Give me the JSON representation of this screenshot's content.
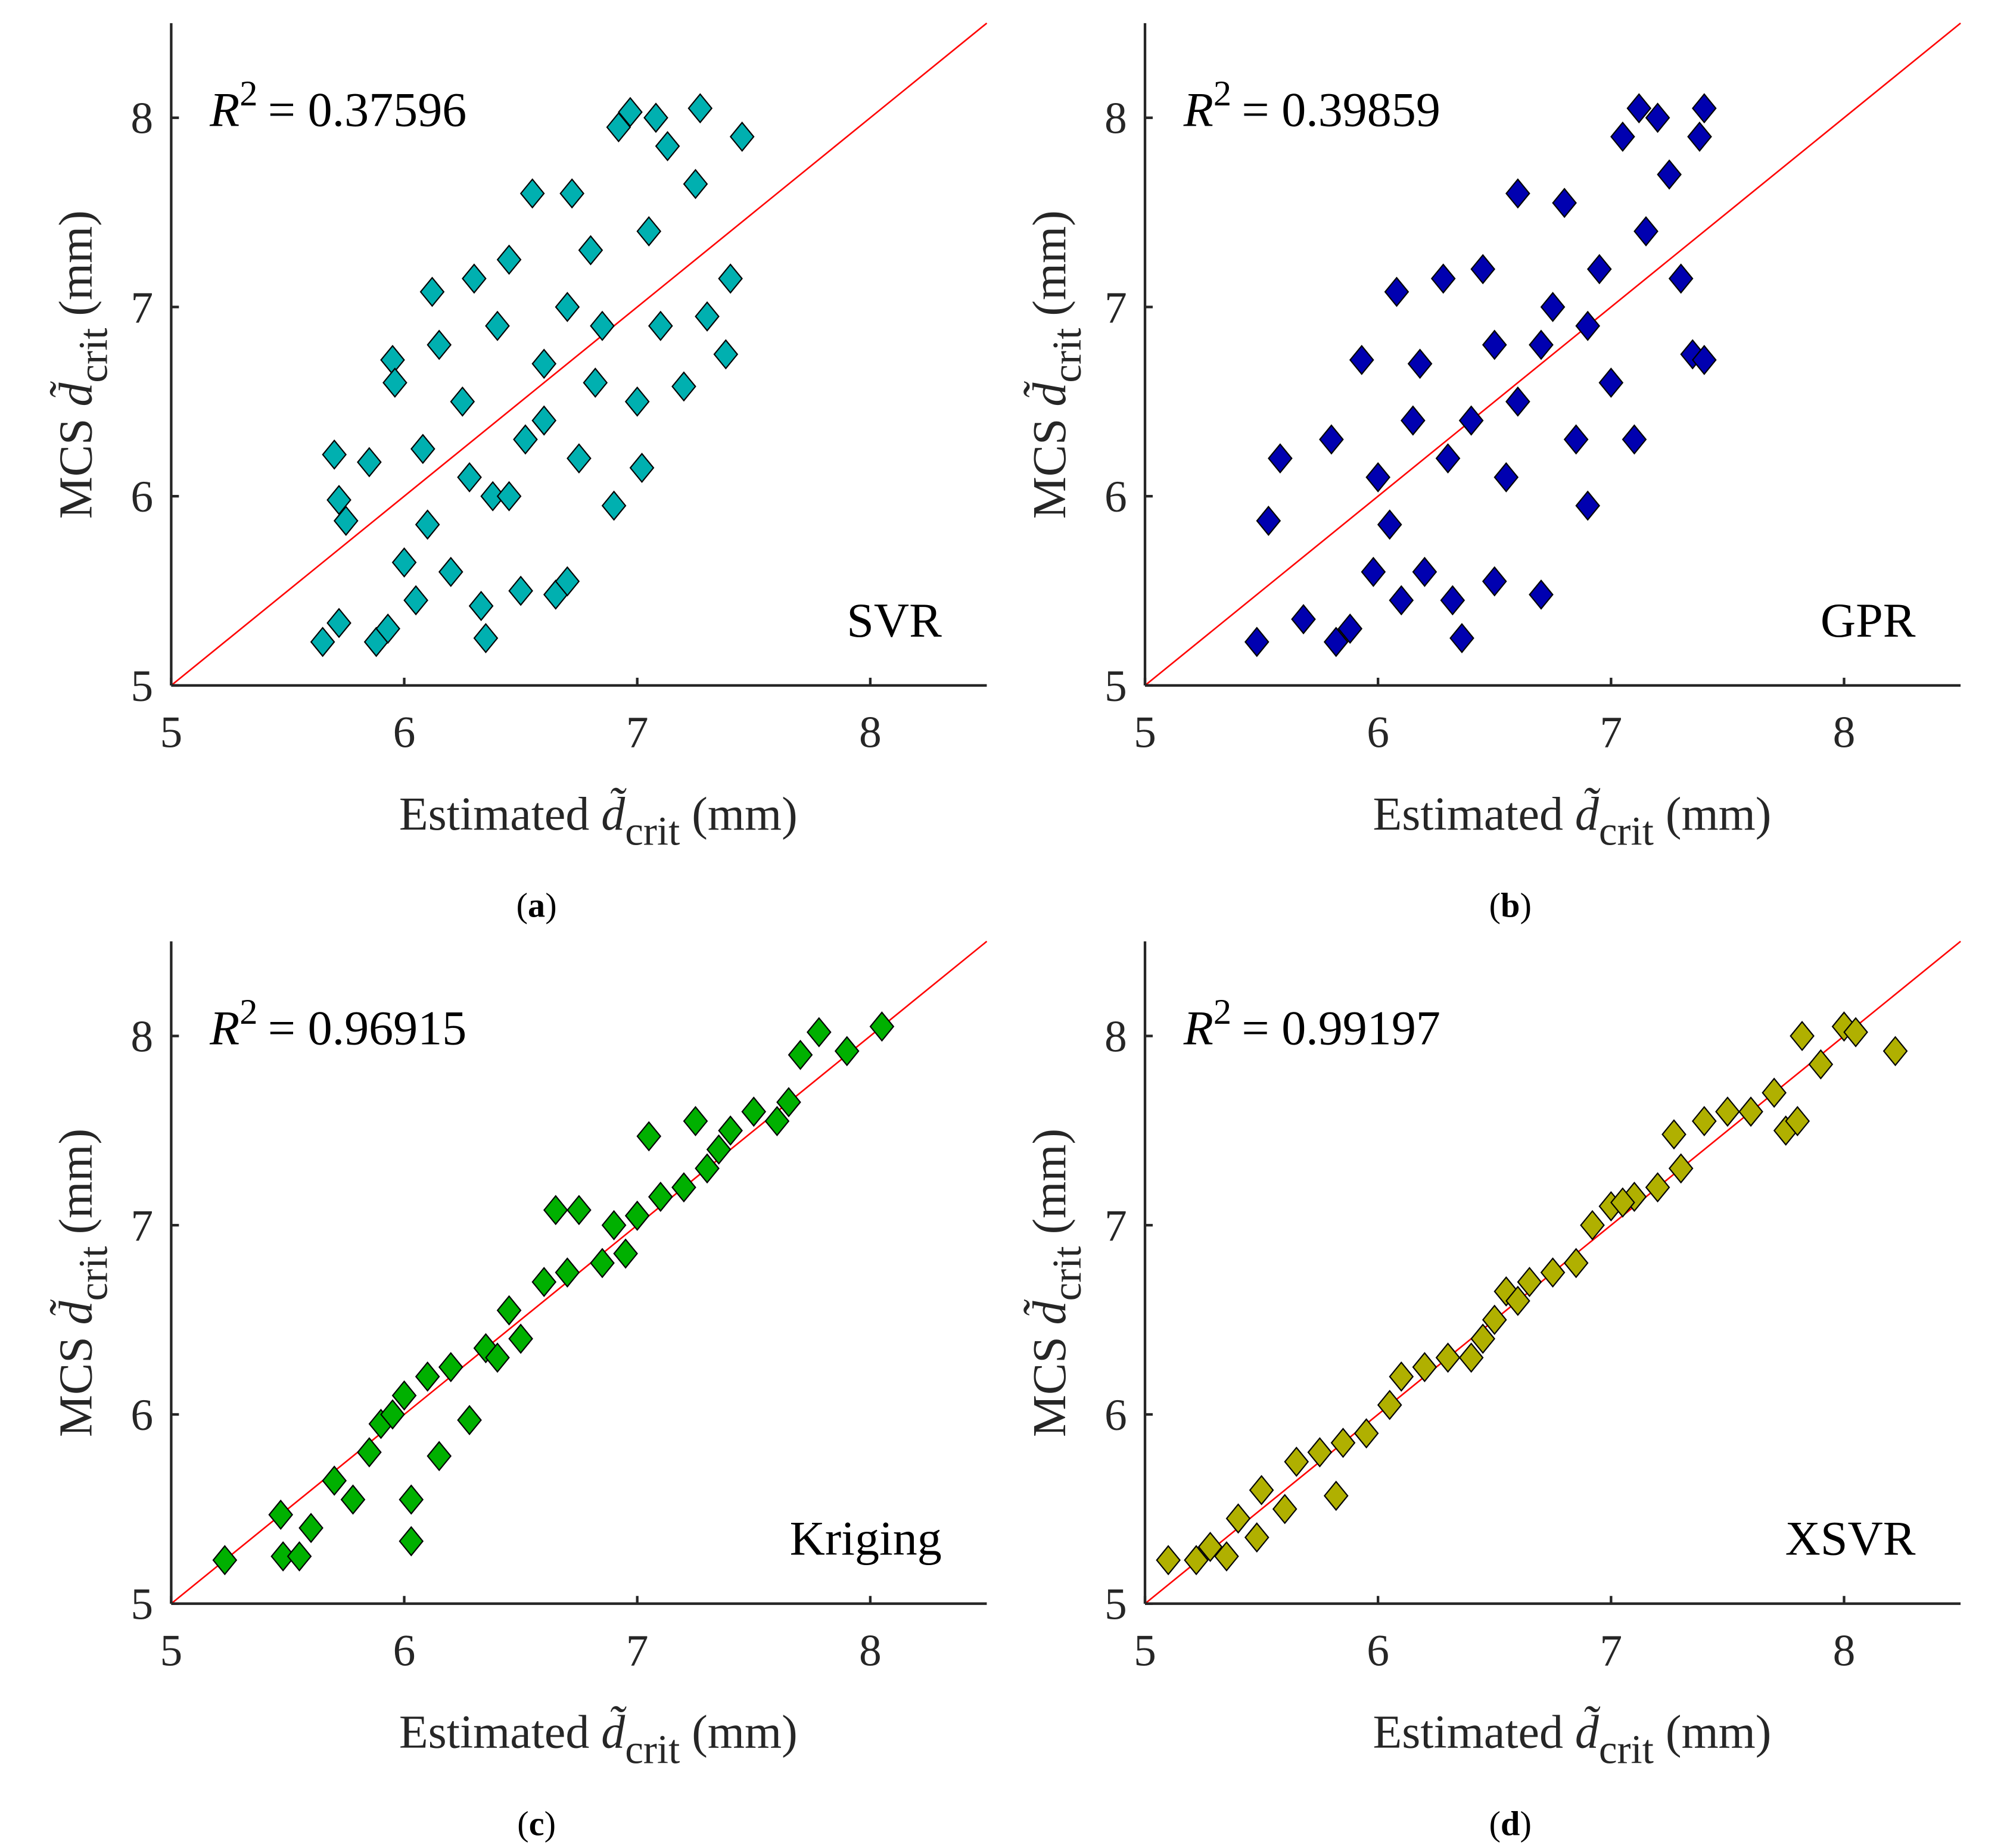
{
  "chart_data": [
    {
      "type": "scatter",
      "caption": "(a)",
      "caption_letter": "a",
      "method": "SVR",
      "r2_label": "R",
      "r2_value": "= 0.37596",
      "xlabel": "Estimated d̃crit (mm)",
      "ylabel": "MCS d̃crit (mm)",
      "xlim": [
        5,
        8.5
      ],
      "ylim": [
        5,
        8.5
      ],
      "xticks": [
        5,
        6,
        7,
        8
      ],
      "yticks": [
        5,
        6,
        7,
        8
      ],
      "color": "#00B0B0",
      "reference_line": "y = x",
      "points": [
        [
          5.65,
          5.23
        ],
        [
          5.72,
          5.33
        ],
        [
          5.7,
          6.22
        ],
        [
          5.72,
          5.98
        ],
        [
          5.75,
          5.87
        ],
        [
          5.85,
          6.18
        ],
        [
          5.88,
          5.23
        ],
        [
          5.93,
          5.3
        ],
        [
          5.95,
          6.72
        ],
        [
          5.96,
          6.6
        ],
        [
          6.0,
          5.65
        ],
        [
          6.05,
          5.45
        ],
        [
          6.08,
          6.25
        ],
        [
          6.1,
          5.85
        ],
        [
          6.12,
          7.08
        ],
        [
          6.15,
          6.8
        ],
        [
          6.2,
          5.6
        ],
        [
          6.25,
          6.5
        ],
        [
          6.3,
          7.15
        ],
        [
          6.33,
          5.42
        ],
        [
          6.35,
          5.25
        ],
        [
          6.38,
          6.0
        ],
        [
          6.4,
          6.9
        ],
        [
          6.45,
          7.25
        ],
        [
          6.5,
          5.5
        ],
        [
          6.52,
          6.3
        ],
        [
          6.55,
          7.6
        ],
        [
          6.6,
          6.7
        ],
        [
          6.65,
          5.48
        ],
        [
          6.7,
          5.55
        ],
        [
          6.72,
          7.6
        ],
        [
          6.75,
          6.2
        ],
        [
          6.8,
          7.3
        ],
        [
          6.85,
          6.9
        ],
        [
          6.9,
          5.95
        ],
        [
          6.92,
          7.95
        ],
        [
          6.97,
          8.03
        ],
        [
          7.0,
          6.5
        ],
        [
          7.02,
          6.15
        ],
        [
          7.05,
          7.4
        ],
        [
          7.08,
          8.0
        ],
        [
          7.1,
          6.9
        ],
        [
          7.13,
          7.85
        ],
        [
          7.2,
          6.58
        ],
        [
          7.25,
          7.65
        ],
        [
          7.27,
          8.05
        ],
        [
          7.3,
          6.95
        ],
        [
          7.38,
          6.75
        ],
        [
          7.4,
          7.15
        ],
        [
          7.45,
          7.9
        ],
        [
          6.28,
          6.1
        ],
        [
          6.6,
          6.4
        ],
        [
          6.82,
          6.6
        ],
        [
          6.45,
          6.0
        ],
        [
          6.7,
          7.0
        ]
      ]
    },
    {
      "type": "scatter",
      "caption": "(b)",
      "caption_letter": "b",
      "method": "GPR",
      "r2_label": "R",
      "r2_value": "= 0.39859",
      "xlabel": "Estimated d̃crit (mm)",
      "ylabel": "MCS d̃crit (mm)",
      "xlim": [
        5,
        8.5
      ],
      "ylim": [
        5,
        8.5
      ],
      "xticks": [
        5,
        6,
        7,
        8
      ],
      "yticks": [
        5,
        6,
        7,
        8
      ],
      "color": "#0000B0",
      "reference_line": "y = x",
      "points": [
        [
          5.48,
          5.23
        ],
        [
          5.53,
          5.87
        ],
        [
          5.58,
          6.2
        ],
        [
          5.68,
          5.35
        ],
        [
          5.8,
          6.3
        ],
        [
          5.82,
          5.23
        ],
        [
          5.88,
          5.3
        ],
        [
          5.93,
          6.72
        ],
        [
          5.98,
          5.6
        ],
        [
          6.0,
          6.1
        ],
        [
          6.05,
          5.85
        ],
        [
          6.08,
          7.08
        ],
        [
          6.1,
          5.45
        ],
        [
          6.18,
          6.7
        ],
        [
          6.2,
          5.6
        ],
        [
          6.28,
          7.15
        ],
        [
          6.32,
          5.45
        ],
        [
          6.36,
          5.25
        ],
        [
          6.4,
          6.4
        ],
        [
          6.45,
          7.2
        ],
        [
          6.5,
          5.55
        ],
        [
          6.55,
          6.1
        ],
        [
          6.6,
          7.6
        ],
        [
          6.7,
          5.48
        ],
        [
          6.7,
          6.8
        ],
        [
          6.75,
          7.0
        ],
        [
          6.8,
          7.55
        ],
        [
          6.85,
          6.3
        ],
        [
          6.9,
          5.95
        ],
        [
          6.95,
          7.2
        ],
        [
          7.0,
          6.6
        ],
        [
          7.05,
          7.9
        ],
        [
          7.1,
          6.3
        ],
        [
          7.12,
          8.05
        ],
        [
          7.15,
          7.4
        ],
        [
          7.2,
          8.0
        ],
        [
          7.25,
          7.7
        ],
        [
          7.3,
          7.15
        ],
        [
          7.35,
          6.75
        ],
        [
          7.38,
          7.9
        ],
        [
          7.4,
          8.05
        ],
        [
          7.4,
          6.72
        ],
        [
          6.3,
          6.2
        ],
        [
          6.6,
          6.5
        ],
        [
          6.9,
          6.9
        ],
        [
          6.15,
          6.4
        ],
        [
          6.5,
          6.8
        ]
      ]
    },
    {
      "type": "scatter",
      "caption": "(c)",
      "caption_letter": "c",
      "method": "Kriging",
      "r2_label": "R",
      "r2_value": "= 0.96915",
      "xlabel": "Estimated d̃crit (mm)",
      "ylabel": "MCS d̃crit (mm)",
      "xlim": [
        5,
        8.5
      ],
      "ylim": [
        5,
        8.5
      ],
      "xticks": [
        5,
        6,
        7,
        8
      ],
      "yticks": [
        5,
        6,
        7,
        8
      ],
      "color": "#00B000",
      "reference_line": "y = x",
      "points": [
        [
          5.23,
          5.23
        ],
        [
          5.47,
          5.47
        ],
        [
          5.48,
          5.25
        ],
        [
          5.55,
          5.25
        ],
        [
          5.6,
          5.4
        ],
        [
          5.7,
          5.65
        ],
        [
          5.78,
          5.55
        ],
        [
          5.85,
          5.8
        ],
        [
          5.9,
          5.95
        ],
        [
          5.95,
          6.0
        ],
        [
          6.0,
          6.1
        ],
        [
          6.03,
          5.33
        ],
        [
          6.03,
          5.55
        ],
        [
          6.1,
          6.2
        ],
        [
          6.15,
          5.78
        ],
        [
          6.2,
          6.25
        ],
        [
          6.28,
          5.97
        ],
        [
          6.35,
          6.35
        ],
        [
          6.45,
          6.55
        ],
        [
          6.5,
          6.4
        ],
        [
          6.6,
          6.7
        ],
        [
          6.65,
          7.08
        ],
        [
          6.7,
          6.75
        ],
        [
          6.75,
          7.08
        ],
        [
          6.85,
          6.8
        ],
        [
          6.9,
          7.0
        ],
        [
          7.0,
          7.05
        ],
        [
          7.05,
          7.47
        ],
        [
          7.1,
          7.15
        ],
        [
          7.2,
          7.2
        ],
        [
          7.25,
          7.55
        ],
        [
          7.3,
          7.3
        ],
        [
          7.4,
          7.5
        ],
        [
          7.5,
          7.6
        ],
        [
          7.6,
          7.55
        ],
        [
          7.65,
          7.65
        ],
        [
          7.7,
          7.9
        ],
        [
          7.78,
          8.02
        ],
        [
          7.9,
          7.92
        ],
        [
          8.05,
          8.05
        ],
        [
          6.4,
          6.3
        ],
        [
          6.95,
          6.85
        ],
        [
          7.35,
          7.4
        ]
      ]
    },
    {
      "type": "scatter",
      "caption": "(d)",
      "caption_letter": "d",
      "method": "XSVR",
      "r2_label": "R",
      "r2_value": "= 0.99197",
      "xlabel": "Estimated d̃crit (mm)",
      "ylabel": "MCS d̃crit (mm)",
      "xlim": [
        5,
        8.5
      ],
      "ylim": [
        5,
        8.5
      ],
      "xticks": [
        5,
        6,
        7,
        8
      ],
      "yticks": [
        5,
        6,
        7,
        8
      ],
      "color": "#B0B000",
      "reference_line": "y = x",
      "points": [
        [
          5.1,
          5.23
        ],
        [
          5.22,
          5.23
        ],
        [
          5.28,
          5.3
        ],
        [
          5.35,
          5.25
        ],
        [
          5.4,
          5.45
        ],
        [
          5.48,
          5.35
        ],
        [
          5.5,
          5.6
        ],
        [
          5.6,
          5.5
        ],
        [
          5.65,
          5.75
        ],
        [
          5.75,
          5.8
        ],
        [
          5.82,
          5.57
        ],
        [
          5.85,
          5.85
        ],
        [
          5.95,
          5.9
        ],
        [
          6.05,
          6.05
        ],
        [
          6.1,
          6.2
        ],
        [
          6.2,
          6.25
        ],
        [
          6.3,
          6.3
        ],
        [
          6.4,
          6.3
        ],
        [
          6.5,
          6.5
        ],
        [
          6.55,
          6.65
        ],
        [
          6.65,
          6.7
        ],
        [
          6.75,
          6.75
        ],
        [
          6.85,
          6.8
        ],
        [
          6.92,
          7.0
        ],
        [
          7.0,
          7.1
        ],
        [
          7.1,
          7.15
        ],
        [
          7.2,
          7.2
        ],
        [
          7.27,
          7.48
        ],
        [
          7.3,
          7.3
        ],
        [
          7.4,
          7.55
        ],
        [
          7.5,
          7.6
        ],
        [
          7.6,
          7.6
        ],
        [
          7.7,
          7.7
        ],
        [
          7.75,
          7.5
        ],
        [
          7.8,
          7.55
        ],
        [
          7.82,
          8.0
        ],
        [
          7.9,
          7.85
        ],
        [
          8.0,
          8.05
        ],
        [
          8.05,
          8.02
        ],
        [
          8.22,
          7.92
        ],
        [
          6.45,
          6.4
        ],
        [
          6.6,
          6.6
        ],
        [
          7.05,
          7.12
        ]
      ]
    }
  ],
  "colors": {
    "reference_line": "#FF0000",
    "axis": "#262626"
  }
}
